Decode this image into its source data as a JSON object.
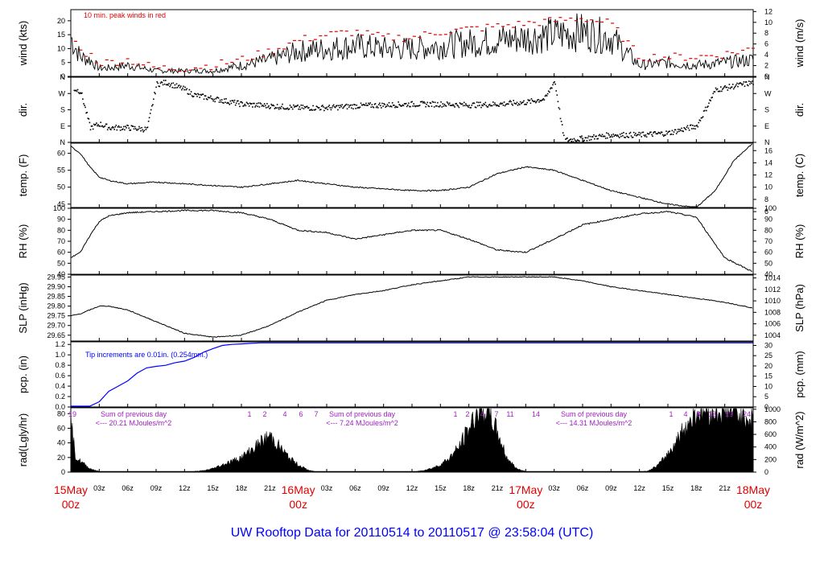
{
  "footer_title": "UW Rooftop Data for 20110514  to  20110517 @ 23:58:04  (UTC)",
  "colors": {
    "wind_peak": "#e00000",
    "pcp_line": "#0000ff",
    "solar_text": "#a020c0",
    "date_text": "#e00000",
    "footer": "#0000ff"
  },
  "time_axis": {
    "hour_ticks": [
      "03z",
      "06z",
      "09z",
      "12z",
      "15z",
      "18z",
      "21z"
    ],
    "day_labels": [
      {
        "date": "15May",
        "hour": "00z"
      },
      {
        "date": "16May",
        "hour": "00z"
      },
      {
        "date": "17May",
        "hour": "00z"
      },
      {
        "date": "18May",
        "hour": "00z"
      }
    ]
  },
  "chart_data": [
    {
      "type": "line",
      "ylabel_left": "wind (kts)",
      "ylabel_right": "wind (m/s)",
      "ylim": [
        0,
        24
      ],
      "yticks_left": [
        "0",
        "5",
        "10",
        "15",
        "20"
      ],
      "y2lim": [
        0,
        12.35
      ],
      "yticks_right": [
        "0",
        "2",
        "4",
        "6",
        "8",
        "10",
        "12"
      ],
      "annotation": "10 min. peak winds in red",
      "series": [
        {
          "x_hours": [
            0,
            1,
            2,
            3,
            4,
            6,
            9,
            12,
            15,
            18,
            21,
            24,
            27,
            30,
            33,
            36,
            39,
            42,
            45,
            48,
            51,
            54,
            57,
            60,
            63,
            66,
            69,
            72
          ],
          "values": [
            14,
            7,
            6,
            3,
            3,
            4,
            2,
            2,
            2,
            4,
            6,
            9,
            10,
            11,
            10,
            10,
            11,
            12,
            13,
            14,
            15,
            16,
            14,
            4,
            5,
            4,
            5,
            6
          ]
        },
        {
          "name": "10 min. peak winds",
          "x_hours": [
            0,
            1,
            2,
            3,
            4,
            6,
            9,
            12,
            15,
            18,
            21,
            24,
            27,
            30,
            33,
            36,
            39,
            42,
            45,
            48,
            51,
            54,
            57,
            60,
            63,
            66,
            69,
            72
          ],
          "values": [
            16,
            9,
            8,
            5,
            5,
            6,
            3,
            3,
            4,
            6,
            9,
            13,
            15,
            16,
            14,
            14,
            16,
            17,
            18,
            19,
            20,
            21,
            19,
            7,
            7,
            7,
            8,
            10
          ]
        }
      ]
    },
    {
      "type": "scatter",
      "ylabel_left": "dir.",
      "ylabel_right": "dir.",
      "ylim": [
        0,
        360
      ],
      "yticks_left": [
        "N",
        "E",
        "S",
        "W",
        "N"
      ],
      "yticks_right": [
        "N",
        "E",
        "S",
        "W",
        "N"
      ],
      "x_hours": [
        0,
        1,
        2,
        3,
        4,
        6,
        8,
        9,
        10,
        11,
        12,
        13,
        15,
        18,
        21,
        24,
        27,
        30,
        33,
        36,
        39,
        42,
        45,
        48,
        50,
        51,
        52,
        54,
        57,
        60,
        63,
        66,
        68,
        70,
        72
      ],
      "values": [
        300,
        280,
        80,
        100,
        80,
        80,
        70,
        320,
        330,
        310,
        290,
        260,
        240,
        210,
        200,
        190,
        190,
        200,
        205,
        210,
        210,
        205,
        210,
        220,
        240,
        340,
        10,
        20,
        40,
        40,
        50,
        90,
        290,
        310,
        330
      ]
    },
    {
      "type": "line",
      "ylabel_left": "temp. (F)",
      "ylabel_right": "temp. (C)",
      "ylim": [
        44,
        63
      ],
      "yticks_left": [
        "45",
        "50",
        "55",
        "60"
      ],
      "y2lim": [
        6.67,
        17.22
      ],
      "yticks_right": [
        "6",
        "8",
        "10",
        "12",
        "14",
        "16"
      ],
      "x_hours": [
        0,
        1,
        2,
        3,
        4,
        6,
        9,
        12,
        15,
        18,
        21,
        24,
        27,
        30,
        33,
        36,
        39,
        42,
        45,
        48,
        51,
        54,
        57,
        60,
        63,
        66,
        68,
        70,
        72
      ],
      "values": [
        62,
        60,
        56,
        53,
        52,
        51,
        51.5,
        51,
        50.5,
        50,
        51,
        52,
        51,
        50,
        49.5,
        49,
        49,
        50,
        54,
        56,
        55,
        52,
        49,
        47,
        45,
        44,
        49,
        58,
        63
      ]
    },
    {
      "type": "line",
      "ylabel_left": "RH (%)",
      "ylabel_right": "RH (%)",
      "ylim": [
        40,
        100
      ],
      "yticks_left": [
        "40",
        "50",
        "60",
        "70",
        "80",
        "90",
        "100"
      ],
      "yticks_right": [
        "40",
        "50",
        "60",
        "70",
        "80",
        "90",
        "100"
      ],
      "x_hours": [
        0,
        1,
        2,
        3,
        4,
        6,
        9,
        12,
        15,
        18,
        21,
        24,
        27,
        30,
        33,
        36,
        39,
        42,
        45,
        48,
        51,
        54,
        57,
        60,
        63,
        66,
        69,
        72
      ],
      "values": [
        55,
        60,
        75,
        88,
        93,
        96,
        97,
        98,
        98,
        96,
        90,
        80,
        78,
        72,
        76,
        80,
        80,
        72,
        62,
        60,
        72,
        85,
        90,
        95,
        97,
        92,
        55,
        42
      ]
    },
    {
      "type": "line",
      "ylabel_left": "SLP (inHg)",
      "ylabel_right": "SLP (hPa)",
      "ylim": [
        29.62,
        29.96
      ],
      "yticks_left": [
        "29.65",
        "29.70",
        "29.75",
        "29.80",
        "29.85",
        "29.90",
        "29.95"
      ],
      "y2lim": [
        1003.0,
        1014.5
      ],
      "yticks_right": [
        "1004",
        "1006",
        "1008",
        "1010",
        "1012",
        "1014"
      ],
      "x_hours": [
        0,
        1,
        2,
        3,
        4,
        6,
        9,
        12,
        15,
        18,
        21,
        24,
        27,
        30,
        33,
        36,
        39,
        42,
        45,
        48,
        51,
        54,
        57,
        60,
        63,
        66,
        69,
        72
      ],
      "values": [
        29.75,
        29.76,
        29.78,
        29.8,
        29.8,
        29.78,
        29.72,
        29.66,
        29.64,
        29.65,
        29.7,
        29.77,
        29.83,
        29.86,
        29.88,
        29.91,
        29.93,
        29.95,
        29.95,
        29.95,
        29.95,
        29.93,
        29.9,
        29.88,
        29.86,
        29.84,
        29.82,
        29.79
      ]
    },
    {
      "type": "line",
      "ylabel_left": "pcp. (in)",
      "ylabel_right": "pcp. (mm)",
      "ylim": [
        0,
        1.25
      ],
      "yticks_left": [
        "0.0",
        "0.2",
        "0.4",
        "0.6",
        "0.8",
        "1.0",
        "1.2"
      ],
      "y2lim": [
        0,
        31.75
      ],
      "yticks_right": [
        "0",
        "5",
        "10",
        "15",
        "20",
        "25",
        "30"
      ],
      "annotation": "Tip increments are 0.01in. (0.254mm.)",
      "x_hours": [
        0,
        2,
        3,
        4,
        5,
        6,
        7,
        8,
        9,
        10,
        11,
        12,
        13,
        14,
        15,
        16,
        17,
        18,
        19,
        20,
        72
      ],
      "values": [
        0,
        0,
        0.1,
        0.3,
        0.4,
        0.5,
        0.65,
        0.75,
        0.78,
        0.8,
        0.85,
        0.88,
        0.95,
        1.05,
        1.12,
        1.18,
        1.2,
        1.21,
        1.22,
        1.23,
        1.23
      ]
    },
    {
      "type": "area",
      "ylabel_left": "rad(Lgly/hr)",
      "ylabel_right": "rad (W/m^2)",
      "ylim": [
        0,
        88
      ],
      "yticks_left": [
        "0",
        "20",
        "40",
        "60",
        "80"
      ],
      "y2lim": [
        0,
        1023
      ],
      "yticks_right": [
        "0",
        "200",
        "400",
        "600",
        "800",
        "1000"
      ],
      "x_hours": [
        0,
        0.5,
        1,
        2,
        3,
        4,
        12,
        13,
        14,
        15,
        16,
        17,
        18,
        19,
        20,
        21,
        22,
        23,
        24,
        25,
        26,
        36,
        37,
        38,
        39,
        40,
        41,
        42,
        43,
        44,
        45,
        46,
        47,
        48,
        49,
        50,
        60,
        61,
        62,
        63,
        64,
        65,
        66,
        67,
        68,
        69,
        70,
        71,
        72
      ],
      "values": [
        70,
        20,
        15,
        5,
        1,
        0,
        0,
        1,
        2,
        5,
        10,
        15,
        20,
        30,
        40,
        50,
        35,
        20,
        10,
        3,
        0,
        0,
        2,
        5,
        10,
        20,
        35,
        60,
        85,
        85,
        55,
        20,
        5,
        1,
        0,
        0,
        0,
        2,
        10,
        25,
        45,
        65,
        82,
        86,
        82,
        85,
        82,
        80,
        70
      ],
      "hourly_totals": [
        "19",
        "1",
        "2",
        "4",
        "6",
        "7",
        "1",
        "2",
        "4",
        "7",
        "11",
        "14",
        "1",
        "4",
        "8",
        "13",
        "19",
        "24"
      ],
      "daily_sums": [
        {
          "label": "Sum of previous day",
          "value": "<--- 20.21 MJoules/m^2"
        },
        {
          "label": "Sum of previous day",
          "value": "<--- 7.24 MJoules/m^2"
        },
        {
          "label": "Sum of previous day",
          "value": "<--- 14.31 MJoules/m^2"
        }
      ]
    }
  ]
}
